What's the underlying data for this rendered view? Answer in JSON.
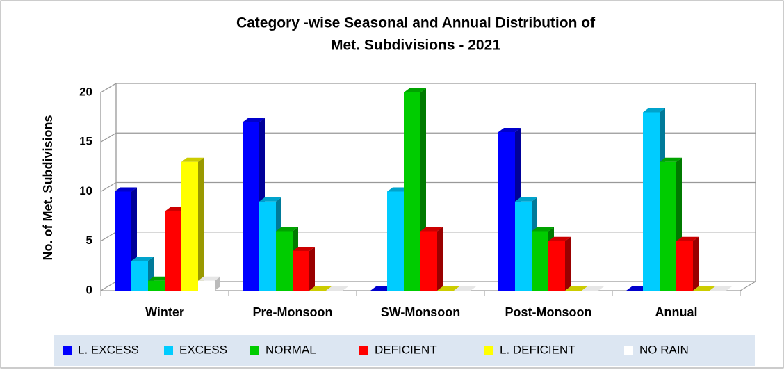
{
  "chart_data": {
    "type": "bar3d",
    "title": [
      "Category -wise Seasonal and Annual Distribution of",
      "Met. Subdivisions - 2021"
    ],
    "y_label": "No. of Met. Subdivisions",
    "categories": [
      "Winter",
      "Pre-Monsoon",
      "SW-Monsoon",
      "Post-Monsoon",
      "Annual"
    ],
    "series": [
      {
        "name": "L. EXCESS",
        "color": "#0000ff",
        "values": [
          10,
          17,
          0,
          16,
          0
        ]
      },
      {
        "name": "EXCESS",
        "color": "#00ccff",
        "values": [
          3,
          9,
          10,
          9,
          18
        ]
      },
      {
        "name": "NORMAL",
        "color": "#00cc00",
        "values": [
          1,
          6,
          20,
          6,
          13
        ]
      },
      {
        "name": "DEFICIENT",
        "color": "#ff0000",
        "values": [
          8,
          4,
          6,
          5,
          5
        ]
      },
      {
        "name": "L. DEFICIENT",
        "color": "#ffff00",
        "values": [
          13,
          0,
          0,
          0,
          0
        ]
      },
      {
        "name": "NO RAIN",
        "color": "#ffffff",
        "values": [
          1,
          0,
          0,
          0,
          0
        ]
      }
    ],
    "ylim": [
      0,
      20
    ],
    "yticks": [
      0,
      5,
      10,
      15,
      20
    ],
    "grid": true,
    "legend": "bottom"
  }
}
